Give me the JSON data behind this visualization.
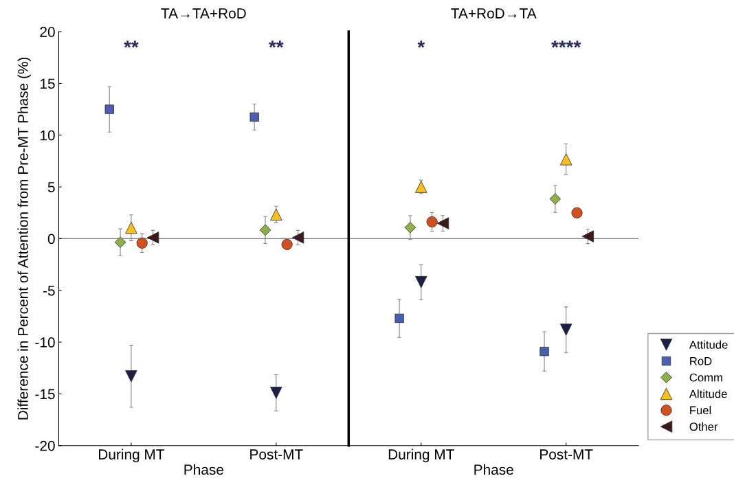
{
  "chart_data": [
    {
      "type": "scatter",
      "title": "TA→TA+RoD",
      "xlabel": "Phase",
      "ylabel": "Difference in Percent of Attention from Pre-MT Phase (%)",
      "categories": [
        "During MT",
        "Post-MT"
      ],
      "ylim": [
        -20,
        20
      ],
      "yticks": [
        -20,
        -15,
        -10,
        -5,
        0,
        5,
        10,
        15,
        20
      ],
      "grid": false,
      "ref_lines": [
        {
          "axis": "y",
          "value": 0,
          "color": "#808080"
        }
      ],
      "series": [
        {
          "color": "#1c1f45",
          "marker": "triangle_down",
          "values": [
            -13.3,
            -14.9
          ],
          "errors": [
            3.0,
            1.75
          ]
        },
        {
          "color": "#4a5fb0",
          "marker": "square",
          "values": [
            12.5,
            11.75
          ],
          "errors": [
            2.2,
            1.25
          ]
        },
        {
          "color": "#8db04a",
          "marker": "diamond",
          "values": [
            -0.35,
            0.83
          ],
          "errors": [
            1.3,
            1.3
          ]
        },
        {
          "color": "#f7c020",
          "marker": "triangle",
          "values": [
            1.05,
            2.33
          ],
          "errors": [
            1.25,
            0.8
          ]
        },
        {
          "color": "#d2501e",
          "marker": "circle",
          "values": [
            -0.43,
            -0.56
          ],
          "errors": [
            0.9,
            null
          ]
        },
        {
          "color": "#3a1a1a",
          "marker": "triangle_left",
          "values": [
            0.1,
            0.1
          ],
          "errors": [
            0.7,
            0.7
          ]
        }
      ],
      "annotations": [
        "**",
        "**"
      ]
    },
    {
      "type": "scatter",
      "title": "TA+RoD→TA",
      "xlabel": "Phase",
      "categories": [
        "During MT",
        "Post-MT"
      ],
      "ylim": [
        -20,
        20
      ],
      "yticks": [
        -20,
        -15,
        -10,
        -5,
        0,
        5,
        10,
        15,
        20
      ],
      "tick_labels": "x",
      "grid": false,
      "legend": "bottom right",
      "ref_lines": [
        {
          "axis": "y",
          "value": 0,
          "color": "#808080"
        }
      ],
      "series": [
        {
          "name": "Attitude",
          "color": "#1c1f45",
          "marker": "triangle_down",
          "values": [
            -4.2,
            -8.8
          ],
          "errors": [
            1.7,
            2.2
          ]
        },
        {
          "name": "RoD",
          "color": "#4a5fb0",
          "marker": "square",
          "values": [
            -7.7,
            -10.9
          ],
          "errors": [
            1.85,
            1.9
          ]
        },
        {
          "name": "Comm",
          "color": "#8db04a",
          "marker": "diamond",
          "values": [
            1.07,
            3.84
          ],
          "errors": [
            1.15,
            1.3
          ]
        },
        {
          "name": "Altitude",
          "color": "#f7c020",
          "marker": "triangle",
          "values": [
            5.0,
            7.67
          ],
          "errors": [
            0.65,
            1.5
          ]
        },
        {
          "name": "Fuel",
          "color": "#d2501e",
          "marker": "circle",
          "values": [
            1.62,
            2.49
          ],
          "errors": [
            0.9,
            null
          ]
        },
        {
          "name": "Other",
          "color": "#3a1a1a",
          "marker": "triangle_left",
          "values": [
            1.48,
            0.22
          ],
          "errors": [
            0.75,
            0.7
          ]
        }
      ],
      "annotations": [
        "*",
        "****"
      ]
    }
  ]
}
